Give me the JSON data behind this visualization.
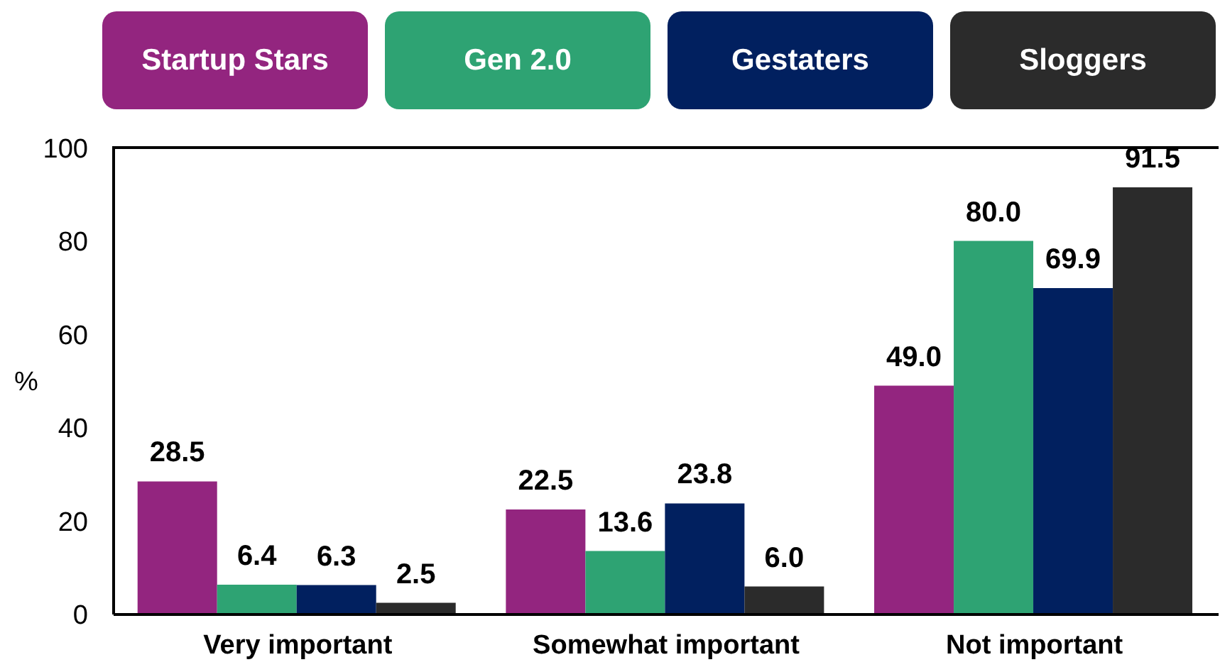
{
  "chart_data": {
    "type": "bar",
    "categories": [
      "Very important",
      "Somewhat important",
      "Not important"
    ],
    "series": [
      {
        "name": "Startup Stars",
        "color": "#93257f",
        "values": [
          28.5,
          22.5,
          49.0
        ],
        "value_labels": [
          "28.5",
          "22.5",
          "49.0"
        ]
      },
      {
        "name": "Gen 2.0",
        "color": "#2ea373",
        "values": [
          6.4,
          13.6,
          80.0
        ],
        "value_labels": [
          "6.4",
          "13.6",
          "80.0"
        ]
      },
      {
        "name": "Gestaters",
        "color": "#01205f",
        "values": [
          6.3,
          23.8,
          69.9
        ],
        "value_labels": [
          "6.3",
          "23.8",
          "69.9"
        ]
      },
      {
        "name": "Sloggers",
        "color": "#2b2b2b",
        "values": [
          2.5,
          6.0,
          91.5
        ],
        "value_labels": [
          "2.5",
          "6.0",
          "91.5"
        ]
      }
    ],
    "ylabel": "%",
    "ylim": [
      0,
      100
    ],
    "yticks": [
      0,
      20,
      40,
      60,
      80,
      100
    ],
    "legend": "top"
  }
}
